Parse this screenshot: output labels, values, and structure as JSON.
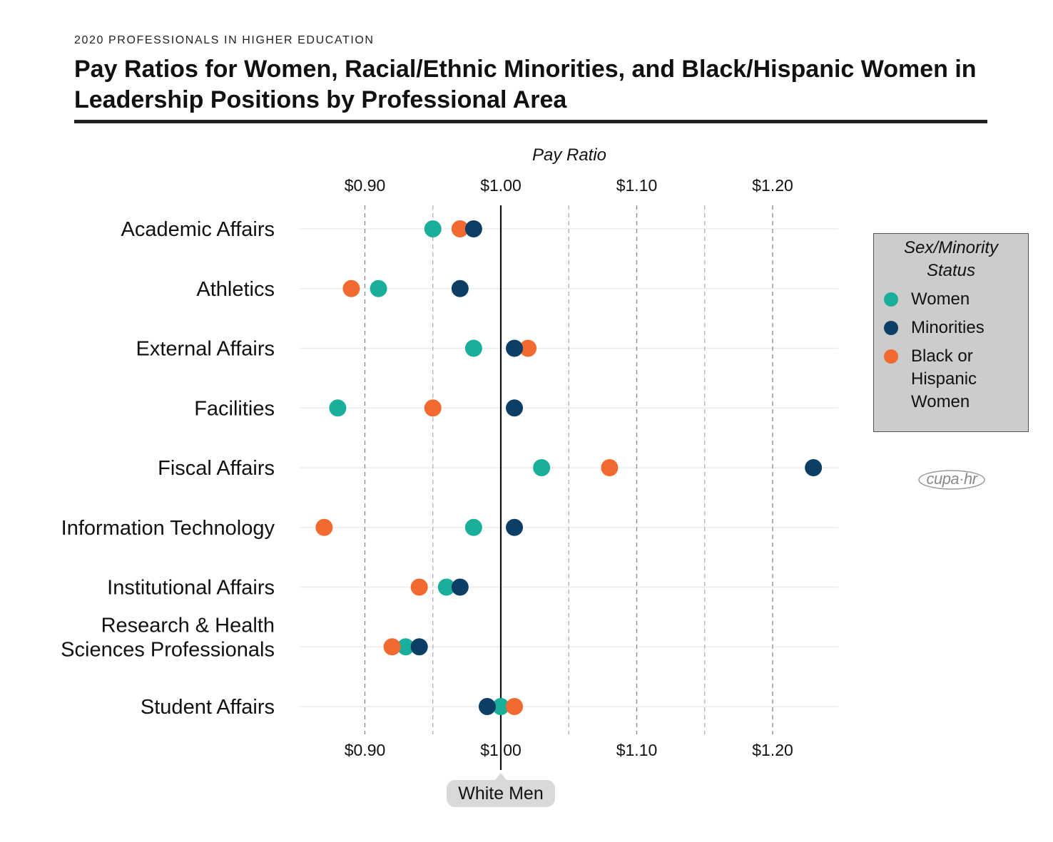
{
  "kicker": "2020 PROFESSIONALS IN HIGHER EDUCATION",
  "title": "Pay Ratios for Women, Racial/Ethnic Minorities, and Black/Hispanic Women in Leadership Positions by Professional Area",
  "legend": {
    "title": "Sex/Minority Status",
    "items": [
      {
        "label": "Women",
        "color": "#1aaf9a"
      },
      {
        "label": "Minorities",
        "color": "#0d3f66"
      },
      {
        "label": "Black or Hispanic Women",
        "color": "#f26a30"
      }
    ]
  },
  "logo": {
    "text": "cupa·hr"
  },
  "reference_label": "White Men",
  "chart_data": {
    "type": "scatter",
    "orientation": "horizontal-dot-plot",
    "xlabel": "Pay Ratio",
    "xlim": [
      0.85,
      1.25
    ],
    "x_ticks": [
      {
        "value": 0.9,
        "label": "$0.90"
      },
      {
        "value": 1.0,
        "label": "$1.00"
      },
      {
        "value": 1.1,
        "label": "$1.10"
      },
      {
        "value": 1.2,
        "label": "$1.20"
      }
    ],
    "minor_gridlines": [
      0.95,
      1.05,
      1.15
    ],
    "reference_line": 1.0,
    "categories": [
      "Academic Affairs",
      "Athletics",
      "External Affairs",
      "Facilities",
      "Fiscal Affairs",
      "Information Technology",
      "Institutional Affairs",
      "Research & Health Sciences Professionals",
      "Student Affairs"
    ],
    "category_lines": [
      [
        "Academic Affairs"
      ],
      [
        "Athletics"
      ],
      [
        "External Affairs"
      ],
      [
        "Facilities"
      ],
      [
        "Fiscal Affairs"
      ],
      [
        "Information Technology"
      ],
      [
        "Institutional Affairs"
      ],
      [
        "Research & Health",
        "Sciences Professionals"
      ],
      [
        "Student Affairs"
      ]
    ],
    "series": [
      {
        "name": "Women",
        "color": "#1aaf9a",
        "values": [
          0.95,
          0.91,
          0.98,
          0.88,
          1.03,
          0.98,
          0.96,
          0.93,
          1.0
        ]
      },
      {
        "name": "Minorities",
        "color": "#0d3f66",
        "values": [
          0.98,
          0.97,
          1.01,
          1.01,
          1.23,
          1.01,
          0.97,
          0.94,
          0.99
        ]
      },
      {
        "name": "Black or Hispanic Women",
        "color": "#f26a30",
        "values": [
          0.97,
          0.89,
          1.02,
          0.95,
          1.08,
          0.87,
          0.94,
          0.92,
          1.01
        ]
      }
    ],
    "grid": true,
    "legend_position": "right"
  }
}
